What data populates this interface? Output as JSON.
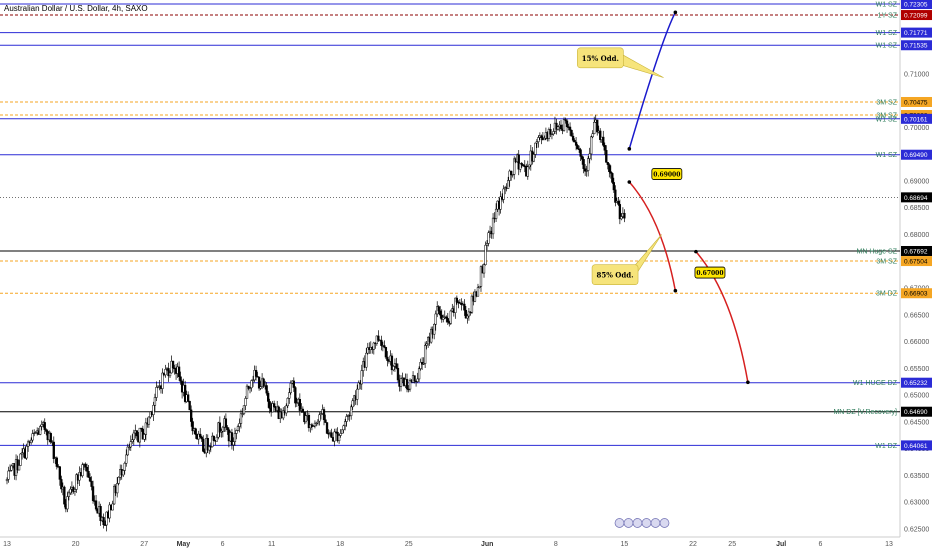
{
  "title": "Australian Dollar / U.S. Dollar, 4h, SAXO",
  "chart_data": {
    "type": "candlestick",
    "ylim": [
      0.6235,
      0.7238
    ],
    "price_ticks": [
      "0.71000",
      "0.70500",
      "0.70000",
      "0.69500",
      "0.69000",
      "0.68500",
      "0.68000",
      "0.67500",
      "0.67000",
      "0.66500",
      "0.66000",
      "0.65500",
      "0.65000",
      "0.64500",
      "0.64000",
      "0.63500",
      "0.63000",
      "0.62500"
    ],
    "x_ticks": [
      {
        "label": "13",
        "x": 0
      },
      {
        "label": "20",
        "x": 7
      },
      {
        "label": "27",
        "x": 14
      },
      {
        "label": "May",
        "x": 18,
        "bold": true
      },
      {
        "label": "6",
        "x": 22
      },
      {
        "label": "11",
        "x": 27
      },
      {
        "label": "18",
        "x": 34
      },
      {
        "label": "25",
        "x": 41
      },
      {
        "label": "Jun",
        "x": 49,
        "bold": true
      },
      {
        "label": "8",
        "x": 56
      },
      {
        "label": "15",
        "x": 63
      },
      {
        "label": "22",
        "x": 70
      },
      {
        "label": "25",
        "x": 74
      },
      {
        "label": "Jul",
        "x": 79,
        "bold": true
      },
      {
        "label": "6",
        "x": 83
      },
      {
        "label": "13",
        "x": 90
      }
    ],
    "price_path": [
      [
        0,
        0.634
      ],
      [
        1,
        0.637
      ],
      [
        2,
        0.64
      ],
      [
        3,
        0.643
      ],
      [
        4,
        0.644
      ],
      [
        5,
        0.638
      ],
      [
        6,
        0.629
      ],
      [
        7,
        0.634
      ],
      [
        8,
        0.637
      ],
      [
        9,
        0.63
      ],
      [
        10,
        0.6262
      ],
      [
        11,
        0.632
      ],
      [
        12,
        0.638
      ],
      [
        13,
        0.642
      ],
      [
        14,
        0.643
      ],
      [
        15,
        0.649
      ],
      [
        16,
        0.654
      ],
      [
        17,
        0.656
      ],
      [
        18,
        0.651
      ],
      [
        19,
        0.644
      ],
      [
        20,
        0.64
      ],
      [
        21,
        0.642
      ],
      [
        22,
        0.645
      ],
      [
        23,
        0.641
      ],
      [
        24,
        0.647
      ],
      [
        25,
        0.654
      ],
      [
        26,
        0.652
      ],
      [
        27,
        0.648
      ],
      [
        28,
        0.646
      ],
      [
        29,
        0.652
      ],
      [
        30,
        0.647
      ],
      [
        31,
        0.644
      ],
      [
        32,
        0.647
      ],
      [
        33,
        0.642
      ],
      [
        34,
        0.643
      ],
      [
        35,
        0.647
      ],
      [
        36,
        0.653
      ],
      [
        37,
        0.659
      ],
      [
        38,
        0.661
      ],
      [
        39,
        0.657
      ],
      [
        40,
        0.653
      ],
      [
        41,
        0.652
      ],
      [
        42,
        0.654
      ],
      [
        43,
        0.66
      ],
      [
        44,
        0.666
      ],
      [
        45,
        0.663
      ],
      [
        46,
        0.668
      ],
      [
        47,
        0.665
      ],
      [
        48,
        0.67
      ],
      [
        49,
        0.678
      ],
      [
        50,
        0.685
      ],
      [
        51,
        0.689
      ],
      [
        52,
        0.694
      ],
      [
        53,
        0.692
      ],
      [
        54,
        0.697
      ],
      [
        55,
        0.699
      ],
      [
        56,
        0.7
      ],
      [
        57,
        0.701
      ],
      [
        58,
        0.698
      ],
      [
        59,
        0.692
      ],
      [
        60,
        0.701
      ],
      [
        61,
        0.695
      ],
      [
        62,
        0.687
      ],
      [
        63,
        0.682
      ]
    ],
    "candle_count": 410,
    "zones": [
      {
        "label": "W1 SZ",
        "price": 0.72305,
        "color": "#2b2bd6",
        "style": "solid"
      },
      {
        "label": "1Y SZ",
        "price": 0.72099,
        "color": "#8b0000",
        "style": "dashed"
      },
      {
        "label": "W1 SZ",
        "price": 0.71771,
        "color": "#2b2bd6",
        "style": "solid"
      },
      {
        "label": "W1 SZ",
        "price": 0.71535,
        "color": "#2b2bd6",
        "style": "solid"
      },
      {
        "label": "3M SZ",
        "price": 0.70475,
        "color": "#f5a623",
        "style": "dashed"
      },
      {
        "label": "3M SZ",
        "price": 0.70232,
        "color": "#f5a623",
        "style": "dashed"
      },
      {
        "label": "W1 SZ",
        "price": 0.70161,
        "color": "#2b2bd6",
        "style": "solid"
      },
      {
        "label": "W1 SZ",
        "price": 0.6949,
        "color": "#2b2bd6",
        "style": "solid"
      },
      {
        "label": "MN Huge SZ",
        "price": 0.67692,
        "color": "#000000",
        "style": "solid"
      },
      {
        "label": "3M SZ",
        "price": 0.67504,
        "color": "#f5a623",
        "style": "dashed"
      },
      {
        "label": "3M DZ",
        "price": 0.66903,
        "color": "#f5a623",
        "style": "dashed"
      },
      {
        "label": "W1 HUGE DZ",
        "price": 0.65232,
        "color": "#2b2bd6",
        "style": "solid"
      },
      {
        "label": "MN DZ [V.Recovery]",
        "price": 0.6469,
        "color": "#000000",
        "style": "solid"
      },
      {
        "label": "W1 DZ",
        "price": 0.64061,
        "color": "#2b2bd6",
        "style": "solid"
      }
    ],
    "price_tags": [
      {
        "text": "0.72305",
        "price": 0.72305,
        "bg": "#2b2bd6",
        "fg": "#ffffff"
      },
      {
        "text": "0.72099",
        "price": 0.72099,
        "bg": "#b00000",
        "fg": "#ffffff"
      },
      {
        "text": "0.71771",
        "price": 0.71771,
        "bg": "#2b2bd6",
        "fg": "#ffffff"
      },
      {
        "text": "0.71535",
        "price": 0.71535,
        "bg": "#2b2bd6",
        "fg": "#ffffff"
      },
      {
        "text": "0.70475",
        "price": 0.70475,
        "bg": "#f5a623",
        "fg": "#000000"
      },
      {
        "text": "0.70232",
        "price": 0.70232,
        "bg": "#f5a623",
        "fg": "#000000"
      },
      {
        "text": "0.70161",
        "price": 0.70161,
        "bg": "#2b2bd6",
        "fg": "#ffffff"
      },
      {
        "text": "0.69490",
        "price": 0.6949,
        "bg": "#2b2bd6",
        "fg": "#ffffff"
      },
      {
        "text": "0.68694",
        "price": 0.68694,
        "bg": "#000000",
        "fg": "#ffffff"
      },
      {
        "text": "0.67692",
        "price": 0.67692,
        "bg": "#000000",
        "fg": "#ffffff"
      },
      {
        "text": "0.67504",
        "price": 0.67504,
        "bg": "#f5a623",
        "fg": "#000000"
      },
      {
        "text": "0.66903",
        "price": 0.66903,
        "bg": "#f5a623",
        "fg": "#000000"
      },
      {
        "text": "0.65232",
        "price": 0.65232,
        "bg": "#2b2bd6",
        "fg": "#ffffff"
      },
      {
        "text": "0.64690",
        "price": 0.6469,
        "bg": "#000000",
        "fg": "#ffffff"
      },
      {
        "text": "0.64061",
        "price": 0.64061,
        "bg": "#2b2bd6",
        "fg": "#ffffff"
      }
    ],
    "current_price": 0.68694,
    "projections": [
      {
        "name": "bullish",
        "color": "#1a1acc",
        "points": [
          [
            63.5,
            0.696
          ],
          [
            66.8,
            0.7165
          ],
          [
            68.2,
            0.7215
          ]
        ]
      },
      {
        "name": "bearish-1",
        "color": "#d62020",
        "points": [
          [
            63.5,
            0.6898
          ],
          [
            66.8,
            0.683
          ],
          [
            68.2,
            0.6695
          ]
        ]
      },
      {
        "name": "bearish-2",
        "color": "#d62020",
        "points": [
          [
            70.3,
            0.6768
          ],
          [
            74.0,
            0.669
          ],
          [
            75.6,
            0.6524
          ]
        ]
      }
    ],
    "callouts": [
      {
        "text": "15% Odd.",
        "x": 58.2,
        "price": 0.713,
        "px": 67.0,
        "pprice": 0.7093
      },
      {
        "text": "85% Odd.",
        "x": 59.7,
        "price": 0.6725,
        "px": 66.8,
        "pprice": 0.68
      }
    ],
    "badges": [
      {
        "text": "0.69000",
        "x": 65.8,
        "price": 0.6912
      },
      {
        "text": "0.67000",
        "x": 70.2,
        "price": 0.6728
      }
    ]
  }
}
